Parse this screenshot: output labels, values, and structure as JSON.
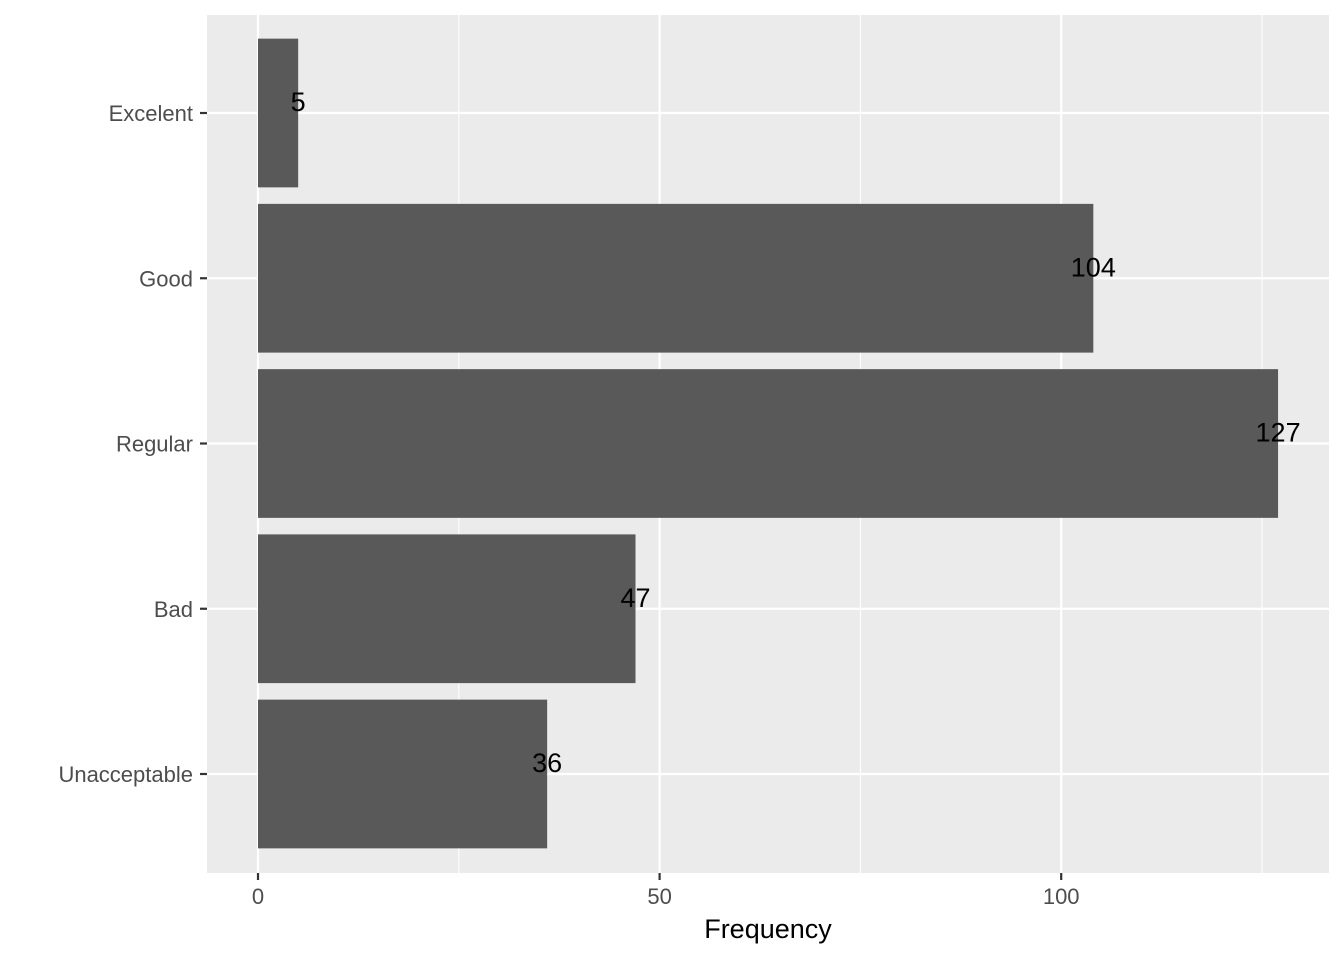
{
  "chart_data": {
    "type": "bar",
    "orientation": "horizontal",
    "categories": [
      "Unacceptable",
      "Bad",
      "Regular",
      "Good",
      "Excelent"
    ],
    "values": [
      36,
      47,
      127,
      104,
      5
    ],
    "data_labels": [
      "36",
      "47",
      "127",
      "104",
      "5"
    ],
    "title": "",
    "xlabel": "Frequency",
    "ylabel": "",
    "xlim": [
      0,
      133.35
    ],
    "x_ticks": [
      0,
      50,
      100
    ],
    "x_tick_labels": [
      "0",
      "50",
      "100"
    ],
    "grid": true,
    "legend": "none"
  },
  "colors": {
    "panel_background": "#ebebeb",
    "grid_major": "#ffffff",
    "bar_fill": "#595959",
    "tick_color": "#333333",
    "tick_label_color": "#4d4d4d",
    "text_color": "#000000"
  }
}
